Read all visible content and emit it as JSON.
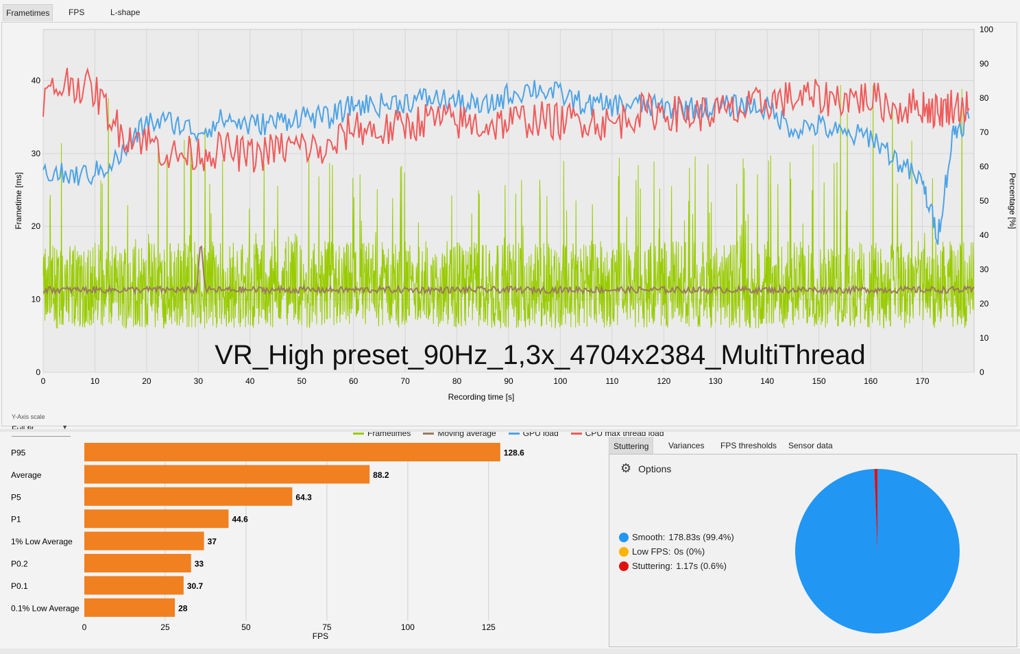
{
  "tabs_top": [
    {
      "label": "Frametimes",
      "active": true
    },
    {
      "label": "FPS",
      "active": false
    },
    {
      "label": "L-shape",
      "active": false
    }
  ],
  "chart_title": "VR_High preset_90Hz_1,3x_4704x2384_MultiThread",
  "y_scale": {
    "caption": "Y-Axis scale",
    "value": "Full fit"
  },
  "chart_data": [
    {
      "type": "line",
      "title": "VR_High preset_90Hz_1,3x_4704x2384_MultiThread",
      "xlabel": "Recording time [s]",
      "ylabel": "Frametime [ms]",
      "y2label": "Percentage [%]",
      "xlim": [
        0,
        180
      ],
      "ylim": [
        0,
        47
      ],
      "y2lim": [
        0,
        100
      ],
      "x_ticks": [
        0,
        10,
        20,
        30,
        40,
        50,
        60,
        70,
        80,
        90,
        100,
        110,
        120,
        130,
        140,
        150,
        160,
        170
      ],
      "y_ticks": [
        0,
        10,
        20,
        30,
        40
      ],
      "y2_ticks": [
        0,
        10,
        20,
        30,
        40,
        50,
        60,
        70,
        80,
        90,
        100
      ],
      "grid": true,
      "legend_position": "bottom",
      "series": [
        {
          "name": "Frametimes",
          "axis": "left",
          "color": "#99cc00",
          "summary": {
            "baseline_ms": 11.2,
            "typical_min_ms": 6,
            "typical_max_ms": 18,
            "spike_max_ms": 40
          }
        },
        {
          "name": "Moving average",
          "axis": "left",
          "color": "#9b7a5c",
          "summary": {
            "level_ms": 11.3,
            "peak": {
              "x": 30.5,
              "y": 18.5
            }
          }
        },
        {
          "name": "GPU load",
          "axis": "right",
          "color": "#4da3e6",
          "x": [
            0,
            5,
            10,
            15,
            20,
            25,
            30,
            35,
            40,
            45,
            50,
            55,
            60,
            65,
            70,
            75,
            80,
            85,
            90,
            95,
            100,
            105,
            110,
            115,
            120,
            125,
            130,
            135,
            140,
            145,
            150,
            155,
            160,
            165,
            170,
            173,
            176,
            179
          ],
          "y": [
            59,
            57,
            58,
            63,
            73,
            73,
            70,
            74,
            72,
            73,
            75,
            74,
            78,
            78,
            79,
            80,
            79,
            77,
            81,
            83,
            81,
            78,
            78,
            78,
            77,
            77,
            77,
            78,
            77,
            71,
            72,
            69,
            69,
            62,
            55,
            40,
            70,
            74
          ]
        },
        {
          "name": "CPU max thread load",
          "axis": "right",
          "color": "#f05a5a",
          "x": [
            0,
            5,
            10,
            15,
            20,
            25,
            30,
            35,
            40,
            45,
            50,
            55,
            60,
            65,
            70,
            75,
            80,
            85,
            90,
            95,
            100,
            105,
            110,
            115,
            120,
            125,
            130,
            135,
            140,
            145,
            150,
            155,
            160,
            165,
            170,
            173,
            176,
            179
          ],
          "y": [
            80,
            85,
            82,
            70,
            68,
            63,
            64,
            65,
            63,
            65,
            66,
            64,
            72,
            70,
            72,
            74,
            73,
            72,
            73,
            74,
            73,
            74,
            72,
            76,
            76,
            75,
            76,
            76,
            79,
            80,
            80,
            80,
            80,
            77,
            78,
            76,
            78,
            77
          ]
        }
      ]
    },
    {
      "type": "bar",
      "orientation": "horizontal",
      "xlabel": "FPS",
      "xlim": [
        0,
        135
      ],
      "x_ticks": [
        0,
        25,
        50,
        75,
        100,
        125
      ],
      "grid": true,
      "categories": [
        "P95",
        "Average",
        "P5",
        "P1",
        "1% Low Average",
        "P0.2",
        "P0.1",
        "0.1% Low Average"
      ],
      "values": [
        128.6,
        88.2,
        64.3,
        44.6,
        37,
        33,
        30.7,
        28
      ],
      "value_labels": [
        "128.6",
        "88.2",
        "64.3",
        "44.6",
        "37",
        "33",
        "30.7",
        "28"
      ],
      "color": "#f08020"
    },
    {
      "type": "pie",
      "slices": [
        {
          "name": "Smooth",
          "value": 99.4,
          "color": "#2196f3"
        },
        {
          "name": "Low FPS",
          "value": 0,
          "color": "#ffb300"
        },
        {
          "name": "Stuttering",
          "value": 0.6,
          "color": "#e01010"
        }
      ]
    }
  ],
  "tabs_right": [
    {
      "label": "Stuttering",
      "active": true
    },
    {
      "label": "Variances",
      "active": false
    },
    {
      "label": "FPS thresholds",
      "active": false
    },
    {
      "label": "Sensor data",
      "active": false
    }
  ],
  "stutter_panel": {
    "options_label": "Options",
    "stats": [
      {
        "label": "Smooth:",
        "value": "178.83s (99.4%)",
        "color": "#2196f3"
      },
      {
        "label": "Low FPS:",
        "value": "0s (0%)",
        "color": "#ffb300"
      },
      {
        "label": "Stuttering:",
        "value": "1.17s (0.6%)",
        "color": "#e01010"
      }
    ]
  }
}
